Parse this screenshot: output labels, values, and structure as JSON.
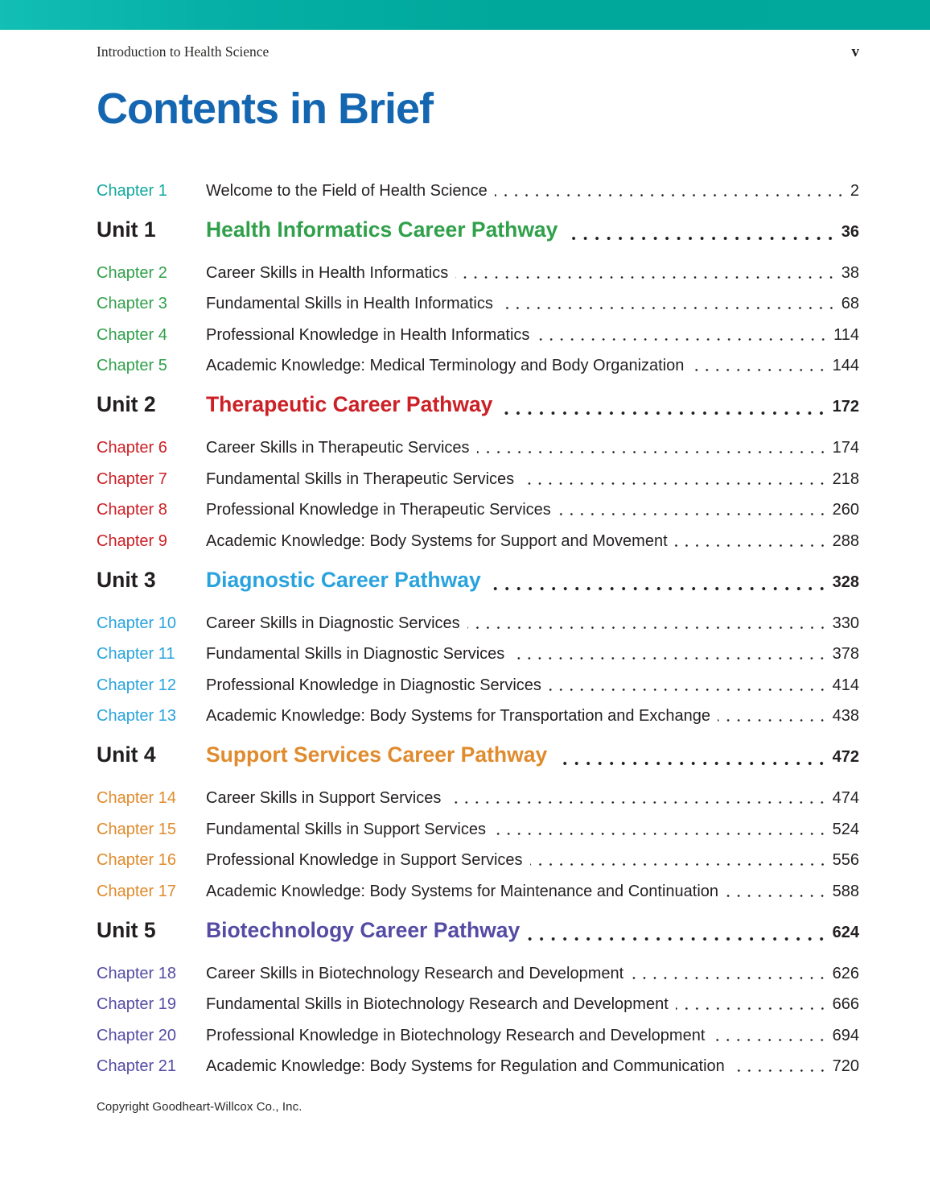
{
  "header": {
    "book_title": "Introduction to Health Science",
    "folio": "v"
  },
  "title": "Contents in Brief",
  "footer": {
    "copyright": "Copyright Goodheart-Willcox Co., Inc."
  },
  "colors": {
    "topbar_left": "#12bfb4",
    "topbar_right": "#00a99b",
    "title_blue": "#1566b1",
    "text": "#231f20",
    "teal": "#12a89e",
    "green": "#31a04b",
    "red": "#cb2026",
    "blue": "#29a3dd",
    "orange": "#e08b2d",
    "purple": "#544ca4"
  },
  "toc": {
    "front": [
      {
        "label": "Chapter 1",
        "title": "Welcome to the Field of Health Science",
        "page": "2",
        "color": "teal"
      }
    ],
    "units": [
      {
        "label": "Unit 1",
        "title": "Health Informatics Career Pathway",
        "page": "36",
        "color": "green",
        "chapters": [
          {
            "label": "Chapter 2",
            "title": "Career Skills in Health Informatics",
            "page": "38"
          },
          {
            "label": "Chapter 3",
            "title": "Fundamental Skills in Health Informatics",
            "page": "68"
          },
          {
            "label": "Chapter 4",
            "title": "Professional Knowledge in Health Informatics",
            "page": "114"
          },
          {
            "label": "Chapter 5",
            "title": "Academic Knowledge: Medical Terminology and Body Organization",
            "page": "144"
          }
        ]
      },
      {
        "label": "Unit 2",
        "title": "Therapeutic Career Pathway",
        "page": "172",
        "color": "red",
        "chapters": [
          {
            "label": "Chapter 6",
            "title": "Career Skills in Therapeutic Services",
            "page": "174"
          },
          {
            "label": "Chapter 7",
            "title": "Fundamental Skills in Therapeutic Services",
            "page": "218"
          },
          {
            "label": "Chapter 8",
            "title": "Professional Knowledge in Therapeutic Services",
            "page": "260"
          },
          {
            "label": "Chapter 9",
            "title": "Academic Knowledge: Body Systems for Support and Movement",
            "page": "288"
          }
        ]
      },
      {
        "label": "Unit 3",
        "title": "Diagnostic Career Pathway",
        "page": "328",
        "color": "blue",
        "chapters": [
          {
            "label": "Chapter 10",
            "title": "Career Skills in Diagnostic Services",
            "page": "330"
          },
          {
            "label": "Chapter 11",
            "title": "Fundamental Skills in Diagnostic Services",
            "page": "378"
          },
          {
            "label": "Chapter 12",
            "title": "Professional Knowledge in Diagnostic Services",
            "page": "414"
          },
          {
            "label": "Chapter 13",
            "title": "Academic Knowledge: Body Systems for Transportation and Exchange",
            "page": "438"
          }
        ]
      },
      {
        "label": "Unit 4",
        "title": "Support Services Career Pathway",
        "page": "472",
        "color": "orange",
        "chapters": [
          {
            "label": "Chapter 14",
            "title": "Career Skills in Support Services",
            "page": "474"
          },
          {
            "label": "Chapter 15",
            "title": "Fundamental Skills in Support Services",
            "page": "524"
          },
          {
            "label": "Chapter 16",
            "title": "Professional Knowledge in Support Services",
            "page": "556"
          },
          {
            "label": "Chapter 17",
            "title": "Academic Knowledge: Body Systems for Maintenance and Continuation",
            "page": "588"
          }
        ]
      },
      {
        "label": "Unit 5",
        "title": "Biotechnology Career Pathway",
        "page": "624",
        "color": "purple",
        "chapters": [
          {
            "label": "Chapter 18",
            "title": "Career Skills in Biotechnology Research and Development",
            "page": "626"
          },
          {
            "label": "Chapter 19",
            "title": "Fundamental Skills in Biotechnology Research and Development",
            "page": "666"
          },
          {
            "label": "Chapter 20",
            "title": "Professional Knowledge in Biotechnology Research and Development",
            "page": "694"
          },
          {
            "label": "Chapter 21",
            "title": "Academic Knowledge: Body Systems for Regulation and Communication",
            "page": "720"
          }
        ]
      }
    ]
  }
}
